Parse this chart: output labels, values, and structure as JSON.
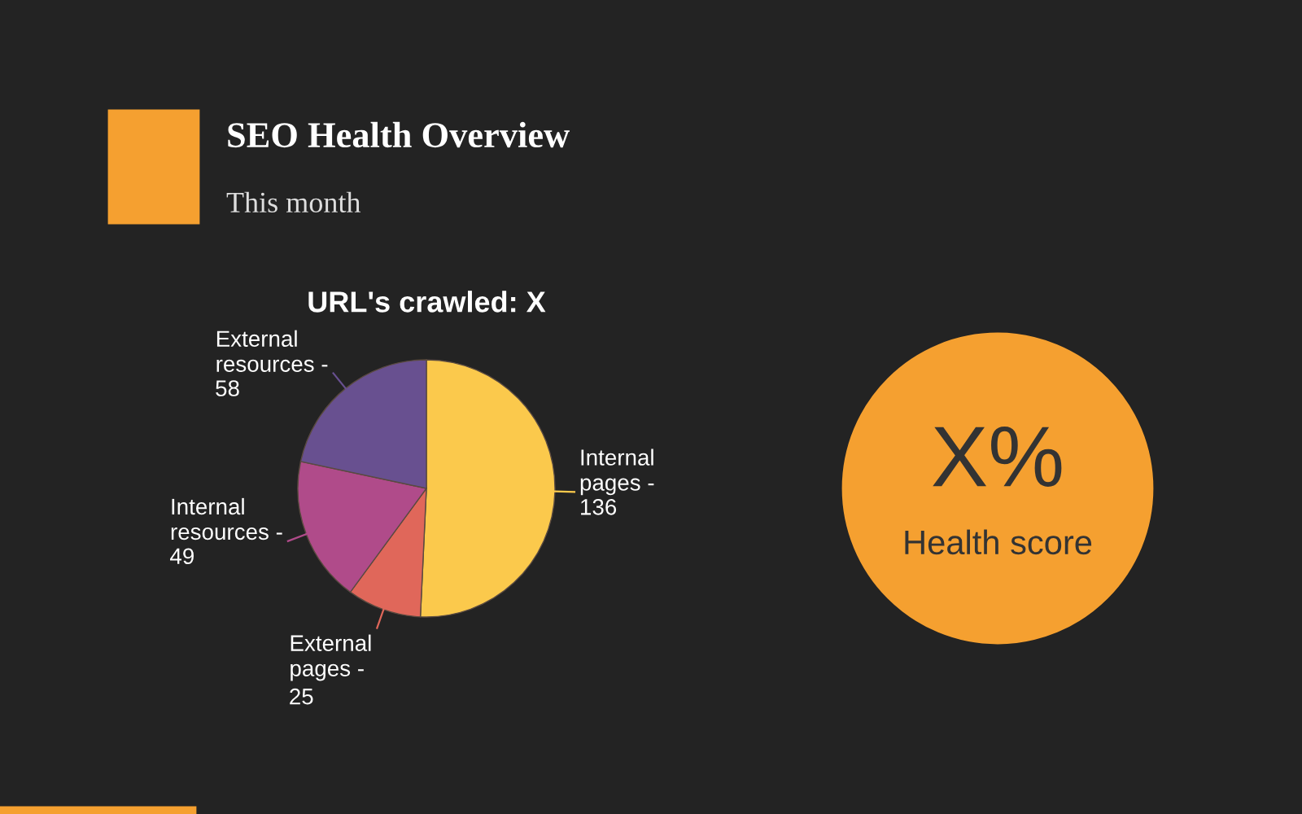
{
  "chart_data": [
    {
      "type": "other",
      "title": "SEO Health Overview",
      "subtitle": "This month"
    },
    {
      "type": "pie",
      "title": "URL's crawled: X",
      "categories": [
        "Internal pages -",
        "External pages -",
        "Internal resources -",
        "External resources -"
      ],
      "values": [
        136,
        25,
        49,
        58
      ],
      "colors": [
        "#fbc94c",
        "#e0675a",
        "#b04b8a",
        "#685090"
      ],
      "data_labels": true
    },
    {
      "type": "other",
      "annotations": [
        "X%",
        "Health score"
      ]
    }
  ]
}
